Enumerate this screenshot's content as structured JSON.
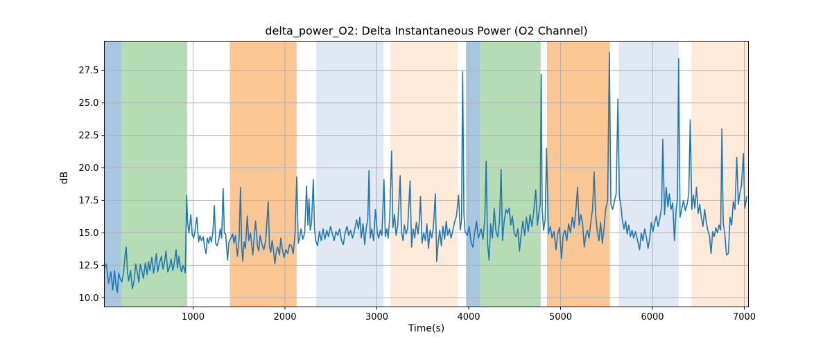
{
  "figure": {
    "title": "delta_power_O2: Delta Instantaneous Power (O2 Channel)",
    "xlabel": "Time(s)",
    "ylabel": "dB"
  },
  "chart_data": {
    "type": "line",
    "title": "delta_power_O2: Delta Instantaneous Power (O2 Channel)",
    "xlabel": "Time(s)",
    "ylabel": "dB",
    "xlim": [
      34,
      7045
    ],
    "ylim": [
      9.3,
      29.75
    ],
    "xticks": [
      1000,
      2000,
      3000,
      4000,
      5000,
      6000,
      7000
    ],
    "yticks": [
      10.0,
      12.5,
      15.0,
      17.5,
      20.0,
      22.5,
      25.0,
      27.5
    ],
    "xtick_labels": [
      "1000",
      "2000",
      "3000",
      "4000",
      "5000",
      "6000",
      "7000"
    ],
    "ytick_labels": [
      "10.0",
      "12.5",
      "15.0",
      "17.5",
      "20.0",
      "22.5",
      "25.0",
      "27.5"
    ],
    "grid": true,
    "legend": "none",
    "colors": {
      "line": "#1f77b4",
      "grid": "#b2b2b2",
      "spine": "#000000",
      "band_blue": "#a8c7e0",
      "band_green": "#b6dcb5",
      "band_orange": "#fac693",
      "band_lightblue": "#dfe8f3",
      "band_lightorange": "#fdead8"
    },
    "bands": [
      {
        "xmin": 34,
        "xmax": 215,
        "color_key": "band_blue"
      },
      {
        "xmin": 215,
        "xmax": 935,
        "color_key": "band_green"
      },
      {
        "xmin": 1400,
        "xmax": 2127,
        "color_key": "band_orange"
      },
      {
        "xmin": 2341,
        "xmax": 3073,
        "color_key": "band_lightblue"
      },
      {
        "xmin": 3149,
        "xmax": 3878,
        "color_key": "band_lightorange"
      },
      {
        "xmin": 3971,
        "xmax": 4122,
        "color_key": "band_blue"
      },
      {
        "xmin": 4122,
        "xmax": 4783,
        "color_key": "band_green"
      },
      {
        "xmin": 4852,
        "xmax": 5536,
        "color_key": "band_orange"
      },
      {
        "xmin": 5636,
        "xmax": 6285,
        "color_key": "band_lightblue"
      },
      {
        "xmin": 6424,
        "xmax": 7045,
        "color_key": "band_lightorange"
      }
    ],
    "series": [
      {
        "name": "delta_power_O2",
        "x": [
          34,
          55,
          80,
          105,
          125,
          145,
          160,
          175,
          190,
          205,
          225,
          245,
          260,
          272,
          285,
          300,
          320,
          340,
          360,
          375,
          395,
          410,
          425,
          445,
          460,
          480,
          500,
          515,
          530,
          550,
          570,
          585,
          600,
          615,
          635,
          655,
          672,
          690,
          705,
          725,
          745,
          760,
          780,
          800,
          815,
          830,
          845,
          860,
          875,
          890,
          905,
          915,
          930,
          940,
          955,
          975,
          990,
          1005,
          1020,
          1040,
          1060,
          1075,
          1090,
          1110,
          1125,
          1140,
          1155,
          1170,
          1185,
          1200,
          1215,
          1232,
          1245,
          1262,
          1280,
          1295,
          1310,
          1327,
          1340,
          1355,
          1375,
          1390,
          1410,
          1430,
          1445,
          1460,
          1483,
          1500,
          1516,
          1528,
          1540,
          1555,
          1570,
          1590,
          1605,
          1625,
          1650,
          1665,
          1680,
          1700,
          1715,
          1730,
          1750,
          1770,
          1790,
          1818,
          1832,
          1845,
          1860,
          1875,
          1890,
          1905,
          1920,
          1940,
          1955,
          1970,
          1990,
          2010,
          2030,
          2050,
          2070,
          2090,
          2110,
          2128,
          2145,
          2160,
          2175,
          2195,
          2215,
          2235,
          2250,
          2262,
          2275,
          2290,
          2308,
          2322,
          2335,
          2355,
          2375,
          2395,
          2415,
          2435,
          2455,
          2475,
          2495,
          2515,
          2535,
          2555,
          2575,
          2595,
          2615,
          2635,
          2655,
          2675,
          2695,
          2715,
          2735,
          2755,
          2780,
          2800,
          2815,
          2830,
          2850,
          2868,
          2885,
          2902,
          2915,
          2928,
          2945,
          2965,
          2985,
          3005,
          3020,
          3038,
          3055,
          3078,
          3092,
          3108,
          3123,
          3140,
          3161,
          3175,
          3192,
          3210,
          3228,
          3254,
          3268,
          3285,
          3300,
          3318,
          3335,
          3362,
          3378,
          3395,
          3412,
          3430,
          3448,
          3465,
          3475,
          3492,
          3510,
          3528,
          3545,
          3562,
          3580,
          3598,
          3615,
          3637,
          3652,
          3668,
          3685,
          3702,
          3720,
          3738,
          3755,
          3772,
          3790,
          3808,
          3825,
          3845,
          3867,
          3890,
          3908,
          3922,
          3934,
          3948,
          3960,
          3985,
          4005,
          4025,
          4045,
          4065,
          4085,
          4105,
          4118,
          4135,
          4155,
          4175,
          4190,
          4205,
          4222,
          4238,
          4258,
          4278,
          4295,
          4315,
          4335,
          4353,
          4368,
          4385,
          4405,
          4422,
          4440,
          4458,
          4475,
          4495,
          4515,
          4535,
          4552,
          4570,
          4590,
          4610,
          4628,
          4648,
          4668,
          4688,
          4710,
          4730,
          4748,
          4765,
          4779,
          4789,
          4800,
          4815,
          4832,
          4847,
          4868,
          4888,
          4908,
          4928,
          4950,
          4968,
          4988,
          5010,
          5028,
          5048,
          5068,
          5088,
          5108,
          5128,
          5148,
          5168,
          5185,
          5202,
          5220,
          5238,
          5258,
          5272,
          5290,
          5310,
          5330,
          5348,
          5365,
          5382,
          5400,
          5418,
          5435,
          5455,
          5472,
          5490,
          5512,
          5531,
          5548,
          5565,
          5585,
          5605,
          5624,
          5640,
          5655,
          5672,
          5690,
          5708,
          5725,
          5742,
          5760,
          5778,
          5795,
          5815,
          5835,
          5860,
          5878,
          5895,
          5915,
          5935,
          5952,
          5970,
          5988,
          6005,
          6022,
          6042,
          6062,
          6080,
          6100,
          6112,
          6132,
          6150,
          6168,
          6185,
          6202,
          6220,
          6240,
          6258,
          6272,
          6285,
          6300,
          6318,
          6338,
          6358,
          6378,
          6395,
          6411,
          6428,
          6445,
          6462,
          6480,
          6498,
          6515,
          6532,
          6550,
          6568,
          6585,
          6602,
          6620,
          6638,
          6655,
          6672,
          6690,
          6708,
          6725,
          6742,
          6756,
          6770,
          6788,
          6806,
          6826,
          6845,
          6862,
          6880,
          6898,
          6918,
          6935,
          6950,
          6968,
          6990,
          7005,
          7018,
          7028
        ],
        "y": [
          12.3,
          12.6,
          11.1,
          12.0,
          10.6,
          12.1,
          11.0,
          10.4,
          11.9,
          11.5,
          11.2,
          12.1,
          13.3,
          13.9,
          12.0,
          11.3,
          12.1,
          10.7,
          11.4,
          12.6,
          11.9,
          11.2,
          12.6,
          12.0,
          11.5,
          12.7,
          11.8,
          12.8,
          12.1,
          13.1,
          11.9,
          12.6,
          13.4,
          12.0,
          12.7,
          13.2,
          12.2,
          12.8,
          13.6,
          12.0,
          12.4,
          13.0,
          12.1,
          12.9,
          13.7,
          12.3,
          13.2,
          12.4,
          12.0,
          12.5,
          12.2,
          11.9,
          17.9,
          15.8,
          15.0,
          16.4,
          14.9,
          14.6,
          15.1,
          16.2,
          14.3,
          14.8,
          14.4,
          14.7,
          13.9,
          13.4,
          14.6,
          14.2,
          14.7,
          14.3,
          15.1,
          17.1,
          14.2,
          14.0,
          14.5,
          15.3,
          14.6,
          18.4,
          15.0,
          14.9,
          12.9,
          14.3,
          14.6,
          14.9,
          14.2,
          14.8,
          13.2,
          14.5,
          18.5,
          14.0,
          12.8,
          14.3,
          13.8,
          16.3,
          14.4,
          15.0,
          13.3,
          14.6,
          15.9,
          14.0,
          13.6,
          14.8,
          14.1,
          13.7,
          14.4,
          17.4,
          13.9,
          13.5,
          14.4,
          13.7,
          12.6,
          13.5,
          13.9,
          13.3,
          14.6,
          13.8,
          13.1,
          13.7,
          13.4,
          14.1,
          14.0,
          13.4,
          15.0,
          19.3,
          14.2,
          14.6,
          15.3,
          14.5,
          15.0,
          18.6,
          15.6,
          17.6,
          15.2,
          15.8,
          19.1,
          15.3,
          14.4,
          14.0,
          15.1,
          14.4,
          15.3,
          14.5,
          15.2,
          14.7,
          15.5,
          15.0,
          14.4,
          15.1,
          14.8,
          15.3,
          14.4,
          14.1,
          15.0,
          15.5,
          14.8,
          15.2,
          14.6,
          15.1,
          16.0,
          15.3,
          16.2,
          14.6,
          15.7,
          14.1,
          15.4,
          16.1,
          19.8,
          14.6,
          15.3,
          14.4,
          16.8,
          15.0,
          14.6,
          15.2,
          14.8,
          19.1,
          14.7,
          15.3,
          14.6,
          16.2,
          21.3,
          15.4,
          16.4,
          14.8,
          15.6,
          19.4,
          15.1,
          14.4,
          15.6,
          14.9,
          15.3,
          19.0,
          13.9,
          15.3,
          14.6,
          15.8,
          14.9,
          16.1,
          17.8,
          14.2,
          15.0,
          14.4,
          15.7,
          13.8,
          15.2,
          14.6,
          15.4,
          18.0,
          12.8,
          14.2,
          15.2,
          14.0,
          15.5,
          14.5,
          15.9,
          14.8,
          15.3,
          14.6,
          15.1,
          15.8,
          16.3,
          17.9,
          15.2,
          16.0,
          27.4,
          16.5,
          15.1,
          14.8,
          15.5,
          14.3,
          13.9,
          15.0,
          15.9,
          14.6,
          14.9,
          15.3,
          14.5,
          16.0,
          20.5,
          14.2,
          12.9,
          15.7,
          14.6,
          16.9,
          15.2,
          14.7,
          15.9,
          19.9,
          14.4,
          15.8,
          16.8,
          16.5,
          16.9,
          15.6,
          16.3,
          15.0,
          14.7,
          15.3,
          13.6,
          14.8,
          15.9,
          14.8,
          16.2,
          15.1,
          16.4,
          15.5,
          16.8,
          18.3,
          15.6,
          16.6,
          17.2,
          27.2,
          16.8,
          15.2,
          16.0,
          21.5,
          14.9,
          15.5,
          14.6,
          15.1,
          13.7,
          14.9,
          15.4,
          13.0,
          14.8,
          15.2,
          14.4,
          15.7,
          15.0,
          16.2,
          15.4,
          16.9,
          18.5,
          15.6,
          16.4,
          15.8,
          13.9,
          14.7,
          15.2,
          14.6,
          15.9,
          16.8,
          19.7,
          16.4,
          15.1,
          14.4,
          15.8,
          14.2,
          15.3,
          16.8,
          17.5,
          28.9,
          17.2,
          16.8,
          17.4,
          18.0,
          25.3,
          17.8,
          17.2,
          16.0,
          15.3,
          15.9,
          14.9,
          15.6,
          14.7,
          15.2,
          14.6,
          15.1,
          14.5,
          13.7,
          15.0,
          14.4,
          15.3,
          14.6,
          13.8,
          14.6,
          15.8,
          15.1,
          15.7,
          16.3,
          15.5,
          16.1,
          17.0,
          22.2,
          16.4,
          18.5,
          17.0,
          18.0,
          16.8,
          17.3,
          14.4,
          16.8,
          17.6,
          28.4,
          16.2,
          16.8,
          17.5,
          16.7,
          17.2,
          18.0,
          23.7,
          16.8,
          17.9,
          16.9,
          18.5,
          16.5,
          17.2,
          16.2,
          15.5,
          16.8,
          15.9,
          15.2,
          14.8,
          13.4,
          15.1,
          14.7,
          15.4,
          15.0,
          15.6,
          15.2,
          23.0,
          15.8,
          14.9,
          13.3,
          13.4,
          16.2,
          15.6,
          17.4,
          16.8,
          20.8,
          17.2,
          18.0,
          18.6,
          21.1,
          16.9,
          17.4,
          17.8
        ]
      }
    ]
  }
}
